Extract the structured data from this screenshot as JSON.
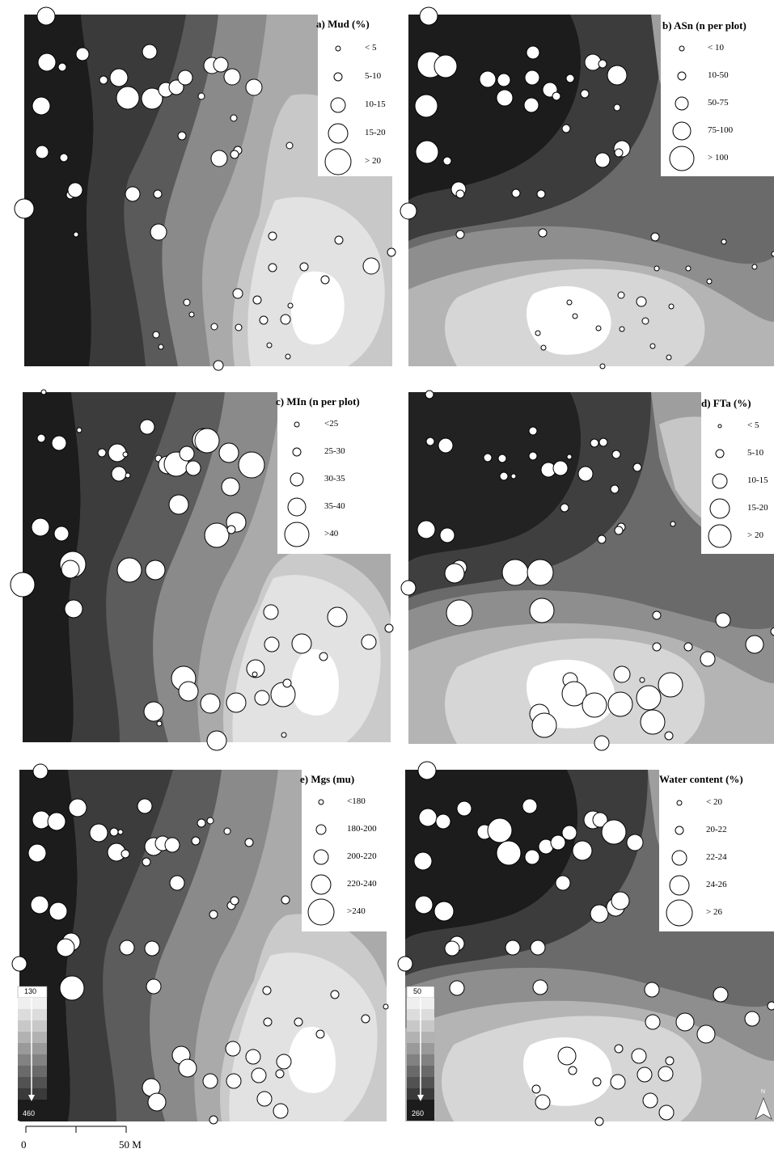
{
  "panels": [
    {
      "id": "a",
      "title": "a) Mud (%)",
      "legend": [
        "< 5",
        "5-10",
        "10-15",
        "15-20",
        "> 20"
      ]
    },
    {
      "id": "b",
      "title": "b) ASn (n per plot)",
      "legend": [
        "< 10",
        "10-50",
        "50-75",
        "75-100",
        "> 100"
      ]
    },
    {
      "id": "c",
      "title": "c) MIn (n per plot)",
      "legend": [
        "<25",
        "25-30",
        "30-35",
        "35-40",
        ">40"
      ]
    },
    {
      "id": "d",
      "title": "d) FTa (%)",
      "legend": [
        "< 5",
        "5-10",
        "10-15",
        "15-20",
        "> 20"
      ]
    },
    {
      "id": "e",
      "title": "e) Mgs (mu)",
      "legend": [
        "<180",
        "180-200",
        "200-220",
        "220-240",
        ">240"
      ]
    },
    {
      "id": "f",
      "title": "Water content (%)",
      "legend": [
        "< 20",
        "20-22",
        "22-24",
        "24-26",
        "> 26"
      ]
    }
  ],
  "color_ramps": [
    {
      "top": "130",
      "bottom": "460"
    },
    {
      "top": "50",
      "bottom": "260"
    }
  ],
  "scale_bar": {
    "start": "0",
    "end": "50 M"
  },
  "north_arrow": {
    "label": "N"
  },
  "colors": {
    "darkest": "#1c1c1c",
    "lightest": "#ffffff",
    "marker_fill": "#ffffff",
    "marker_stroke": "#000000"
  }
}
